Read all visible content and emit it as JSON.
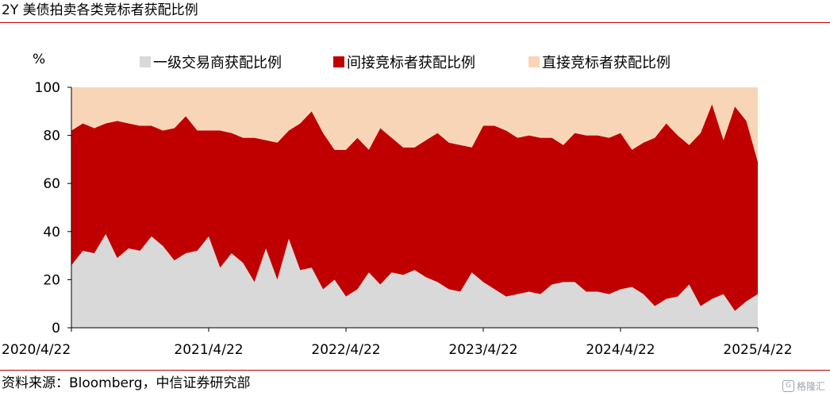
{
  "header": {
    "title": "2Y 美债拍卖各类竞标者获配比例"
  },
  "footer": {
    "source": "资料来源：Bloomberg，中信证券研究部"
  },
  "watermark": {
    "text": "格隆汇",
    "icon": "G"
  },
  "colors": {
    "primary": "#d9d9d9",
    "indirect": "#c00000",
    "direct": "#f9d5b7",
    "rule": "#c00000"
  },
  "chart_data": {
    "type": "area",
    "stacked": true,
    "ylabel": "%",
    "ylim": [
      0,
      100
    ],
    "yticks": [
      "0",
      "20",
      "40",
      "60",
      "80",
      "100"
    ],
    "xticks": [
      {
        "index": 0,
        "label": "2020/4/22"
      },
      {
        "index": 12,
        "label": "2021/4/22"
      },
      {
        "index": 24,
        "label": "2022/4/22"
      },
      {
        "index": 36,
        "label": "2023/4/22"
      },
      {
        "index": 48,
        "label": "2024/4/22"
      },
      {
        "index": 60,
        "label": "2025/4/22"
      }
    ],
    "x": [
      "2020/4",
      "2020/5",
      "2020/6",
      "2020/7",
      "2020/8",
      "2020/9",
      "2020/10",
      "2020/11",
      "2020/12",
      "2021/1",
      "2021/2",
      "2021/3",
      "2021/4",
      "2021/5",
      "2021/6",
      "2021/7",
      "2021/8",
      "2021/9",
      "2021/10",
      "2021/11",
      "2021/12",
      "2022/1",
      "2022/2",
      "2022/3",
      "2022/4",
      "2022/5",
      "2022/6",
      "2022/7",
      "2022/8",
      "2022/9",
      "2022/10",
      "2022/11",
      "2022/12",
      "2023/1",
      "2023/2",
      "2023/3",
      "2023/4",
      "2023/5",
      "2023/6",
      "2023/7",
      "2023/8",
      "2023/9",
      "2023/10",
      "2023/11",
      "2023/12",
      "2024/1",
      "2024/2",
      "2024/3",
      "2024/4",
      "2024/5",
      "2024/6",
      "2024/7",
      "2024/8",
      "2024/9",
      "2024/10",
      "2024/11",
      "2024/12",
      "2025/1",
      "2025/2",
      "2025/3",
      "2025/4"
    ],
    "legend_position": "top",
    "series": [
      {
        "name": "一级交易商获配比例",
        "color": "#d9d9d9",
        "values": [
          26,
          32,
          31,
          39,
          29,
          33,
          32,
          38,
          34,
          28,
          31,
          32,
          38,
          25,
          31,
          27,
          19,
          33,
          20,
          37,
          24,
          25,
          16,
          20,
          13,
          16,
          23,
          18,
          23,
          22,
          24,
          21,
          19,
          16,
          15,
          23,
          19,
          16,
          13,
          14,
          15,
          14,
          18,
          19,
          19,
          15,
          15,
          14,
          16,
          17,
          14,
          9,
          12,
          13,
          18,
          9,
          12,
          14,
          7,
          11,
          14
        ]
      },
      {
        "name": "间接竞标者获配比例",
        "color": "#c00000",
        "values": [
          56,
          53,
          52,
          46,
          57,
          52,
          52,
          46,
          48,
          55,
          57,
          50,
          44,
          57,
          50,
          52,
          60,
          45,
          57,
          45,
          61,
          65,
          65,
          54,
          61,
          63,
          51,
          65,
          56,
          53,
          51,
          57,
          62,
          61,
          61,
          52,
          65,
          68,
          69,
          65,
          65,
          65,
          61,
          57,
          62,
          65,
          65,
          65,
          65,
          57,
          63,
          70,
          73,
          67,
          58,
          72,
          81,
          64,
          85,
          75,
          55
        ]
      },
      {
        "name": "直接竞标者获配比例",
        "color": "#f9d5b7",
        "values": [
          18,
          15,
          17,
          15,
          14,
          15,
          16,
          16,
          18,
          17,
          12,
          18,
          18,
          18,
          19,
          21,
          21,
          22,
          23,
          18,
          15,
          10,
          19,
          26,
          26,
          21,
          26,
          17,
          21,
          25,
          25,
          22,
          19,
          23,
          24,
          25,
          16,
          16,
          18,
          21,
          20,
          21,
          21,
          24,
          19,
          20,
          20,
          21,
          19,
          26,
          23,
          21,
          15,
          20,
          24,
          19,
          7,
          22,
          8,
          14,
          31
        ]
      }
    ]
  }
}
